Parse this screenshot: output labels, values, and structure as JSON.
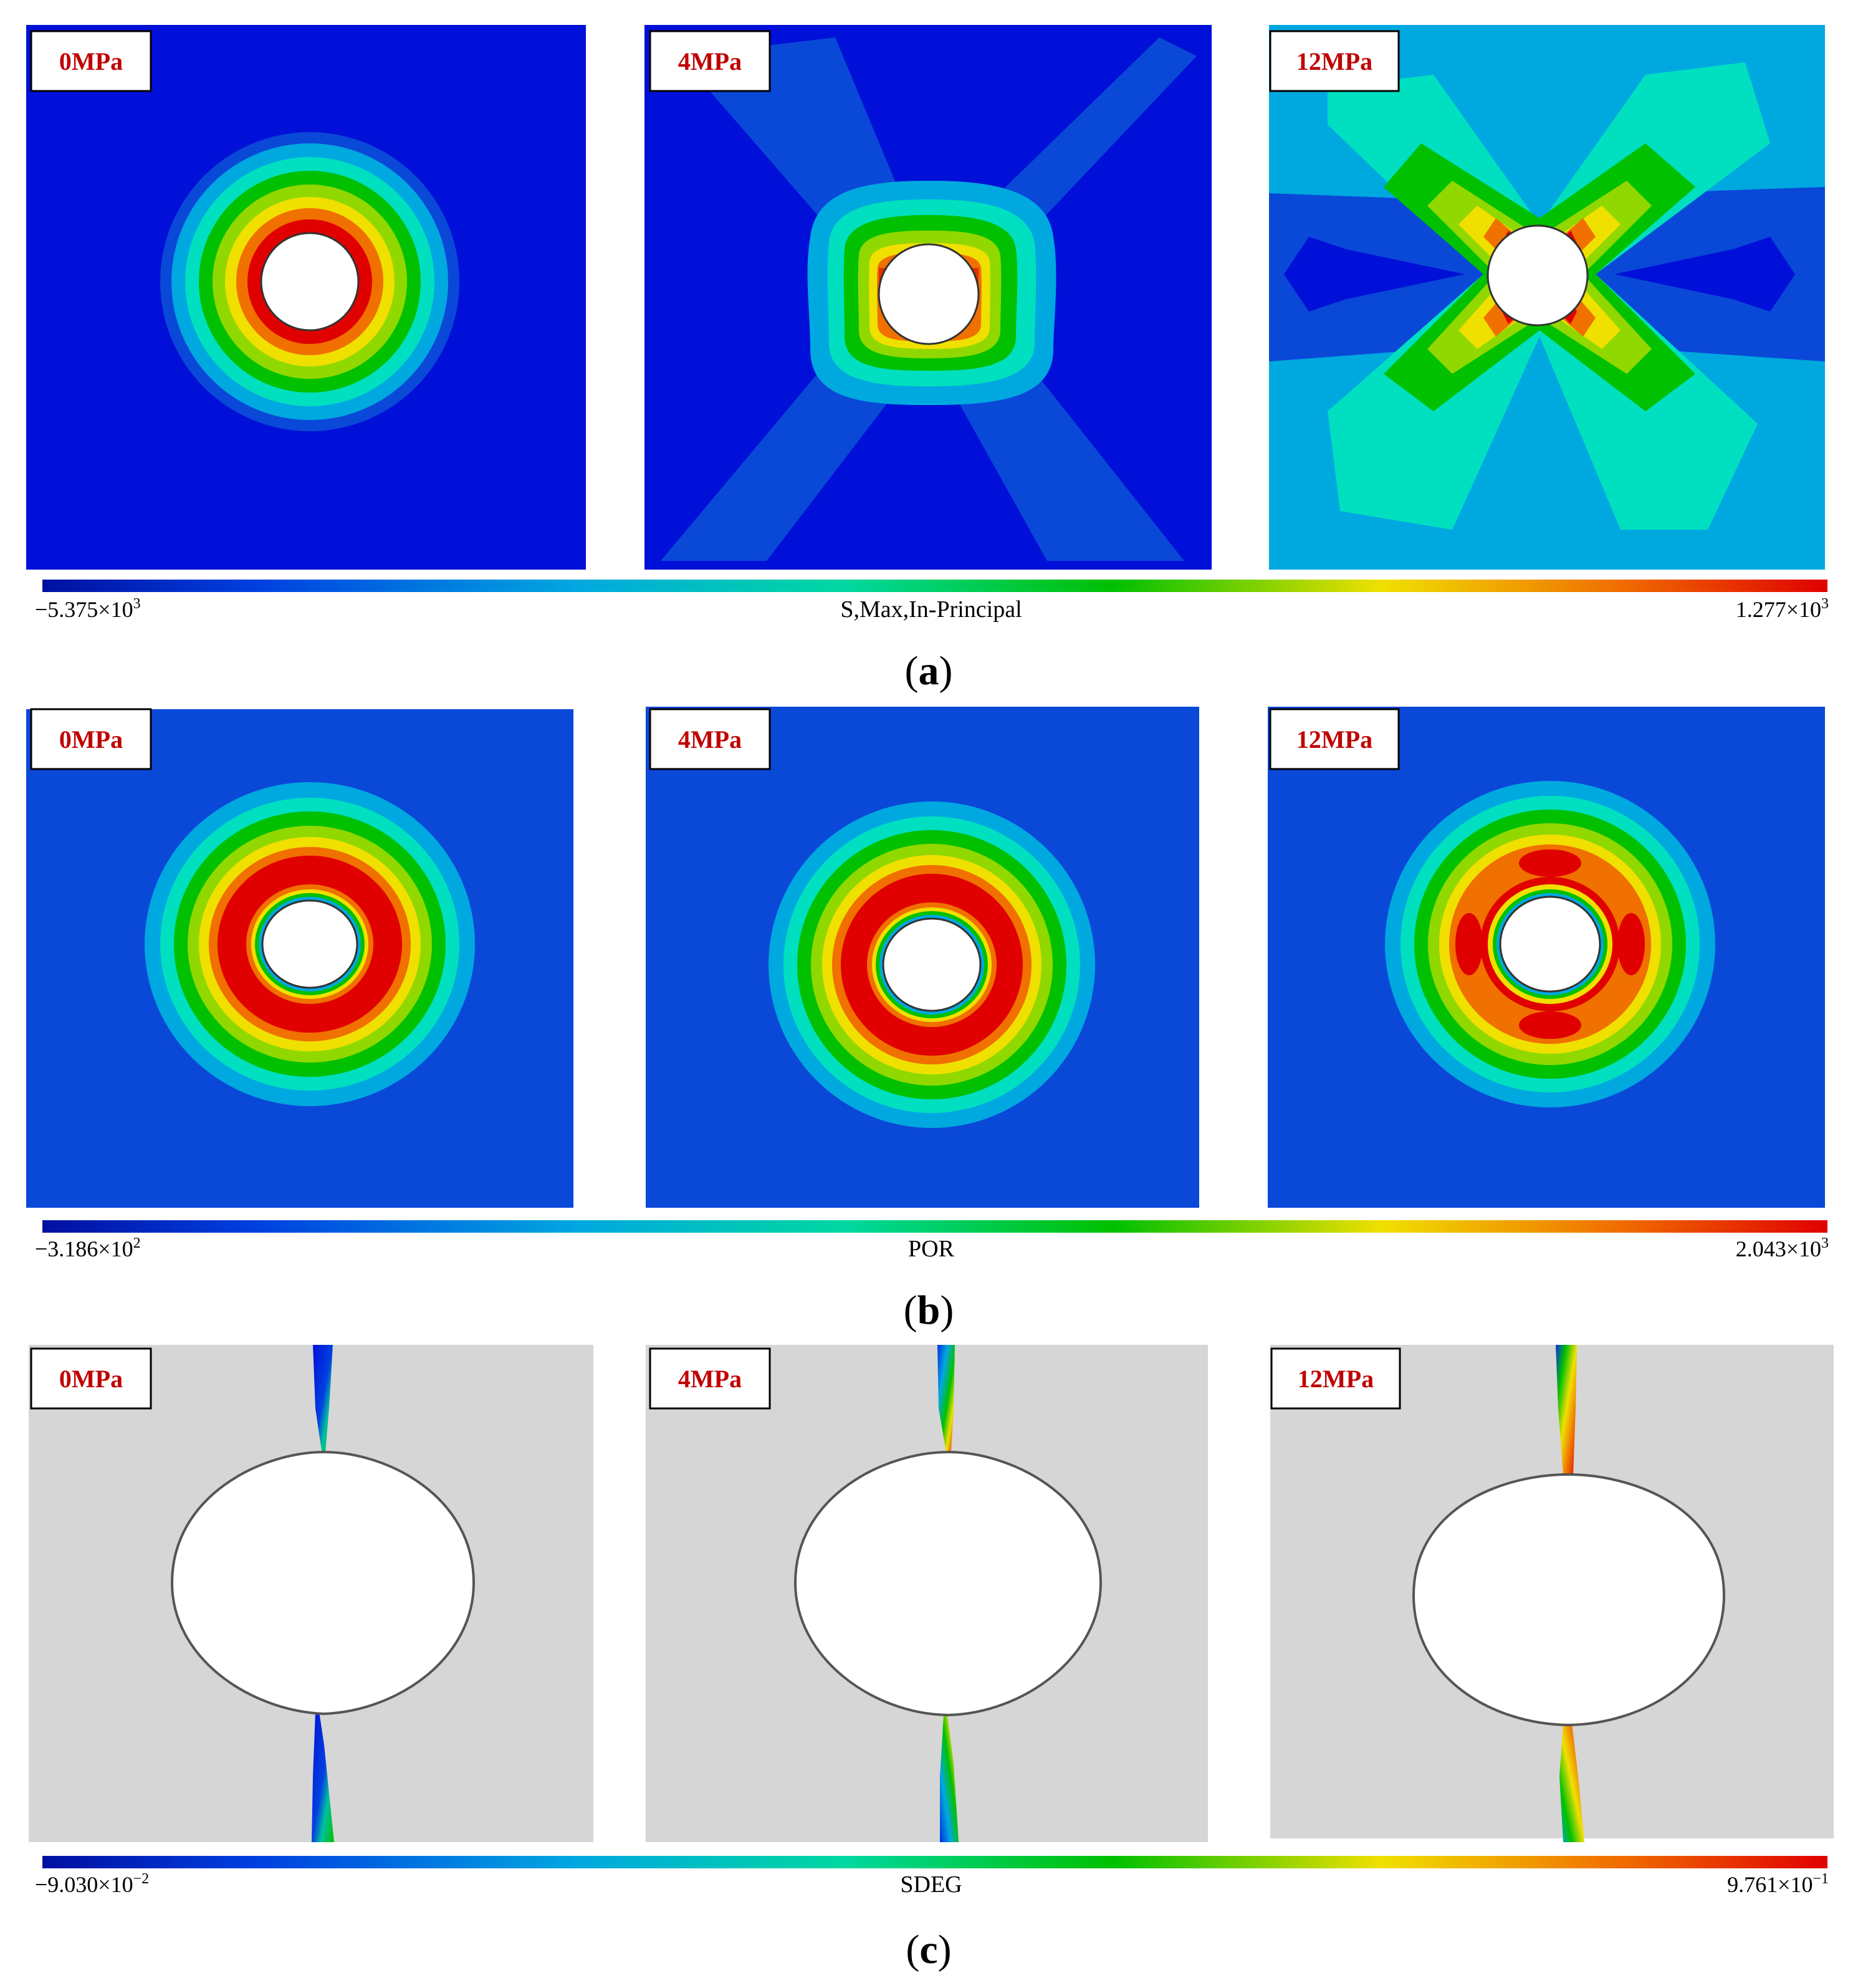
{
  "colors": {
    "blue_deep": "#0010d8",
    "blue": "#0a48d8",
    "cyan": "#00a8e0",
    "teal": "#00e0c0",
    "green": "#00c000",
    "yellow": "#f0e000",
    "orange": "#f07000",
    "red": "#e00000",
    "gray": "#d6d6d6",
    "label_red": "#c00000"
  },
  "panel_labels": [
    "0MPa",
    "4MPa",
    "12MPa"
  ],
  "rows": {
    "a": {
      "caption_letter": "a",
      "bar_title": "S,Max,In-Principal",
      "bar_min": "−5.375×10",
      "bar_min_exp": "3",
      "bar_max": "1.277×10",
      "bar_max_exp": "3"
    },
    "b": {
      "caption_letter": "b",
      "bar_title": "POR",
      "bar_min": "−3.186×10",
      "bar_min_exp": "2",
      "bar_max": "2.043×10",
      "bar_max_exp": "3"
    },
    "c": {
      "caption_letter": "c",
      "bar_title": "SDEG",
      "bar_min": "−9.030×10",
      "bar_min_exp": "−2",
      "bar_max": "9.761×10",
      "bar_max_exp": "−1"
    }
  }
}
